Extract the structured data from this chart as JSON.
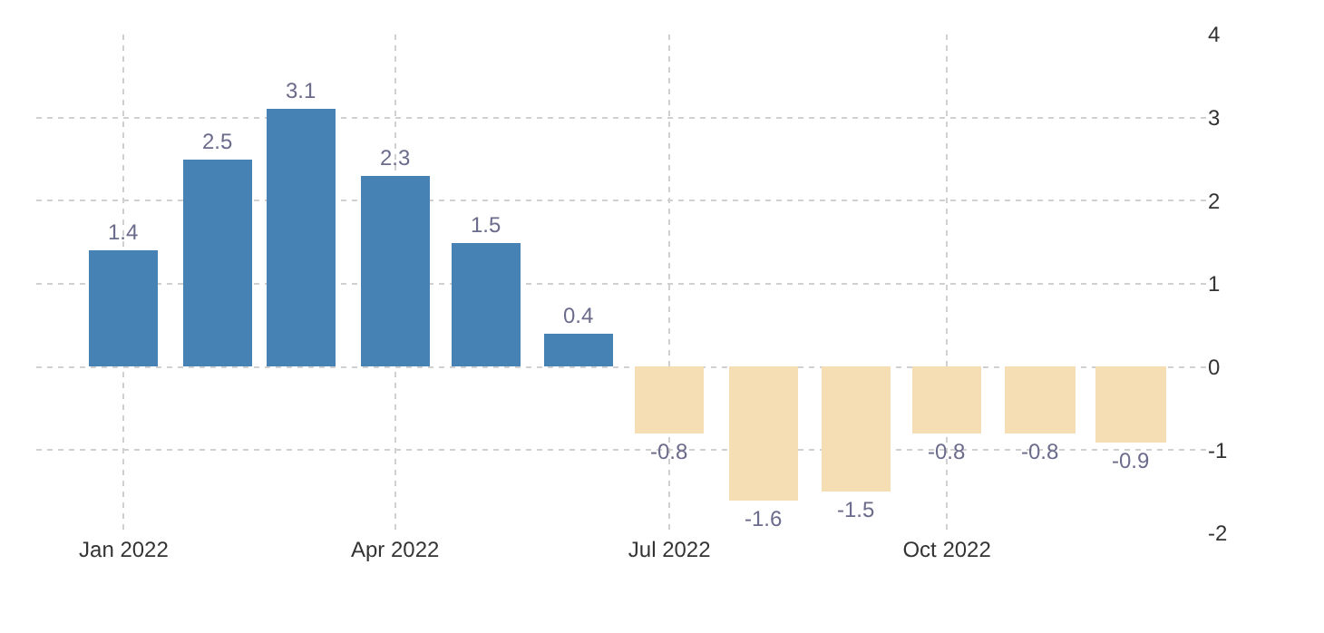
{
  "chart_data": {
    "type": "bar",
    "x": [
      "2022-01",
      "2022-02",
      "2022-03",
      "2022-04",
      "2022-05",
      "2022-06",
      "2022-07",
      "2022-08",
      "2022-09",
      "2022-10",
      "2022-11",
      "2022-12"
    ],
    "values": [
      1.4,
      2.5,
      3.1,
      2.3,
      1.5,
      0.4,
      -0.8,
      -1.6,
      -1.5,
      -0.8,
      -0.8,
      -0.9
    ],
    "colors": [
      "#4682b4",
      "#4682b4",
      "#4682b4",
      "#4682b4",
      "#4682b4",
      "#4682b4",
      "#f5deb3",
      "#f5deb3",
      "#f5deb3",
      "#f5deb3",
      "#f5deb3",
      "#f5deb3"
    ],
    "data_labels": true,
    "xlim": [
      "2021-12-03",
      "2022-12-26"
    ],
    "xticks": [
      {
        "value": "2022-01",
        "label": "Jan 2022"
      },
      {
        "value": "2022-04",
        "label": "Apr 2022"
      },
      {
        "value": "2022-07",
        "label": "Jul 2022"
      },
      {
        "value": "2022-10",
        "label": "Oct 2022"
      }
    ],
    "ylim": [
      -2,
      4
    ],
    "yticks": [
      -2,
      -1,
      0,
      1,
      2,
      3,
      4
    ],
    "grid": true
  }
}
